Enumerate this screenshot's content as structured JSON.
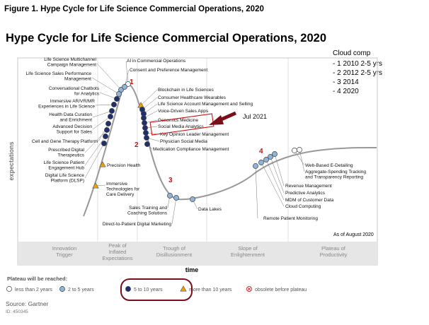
{
  "figure_caption": "Figure 1. Hype Cycle for Life Science Commercial Operations, 2020",
  "source": "Source: Gartner",
  "source_id": "ID: 450345",
  "notes": {
    "title": "Cloud comp",
    "lines": [
      "- 1 2010 2-5 yrs",
      "- 2 2012 2-5 yrs",
      "- 3 2014",
      "- 4 2020"
    ],
    "arrow_label": "Jul 2021",
    "markers": [
      "1",
      "2",
      "3",
      "4"
    ]
  },
  "colors": {
    "curve": "#999999",
    "dot_dark": "#1f2f6e",
    "dot_light": "#8fb4d8",
    "dot_white": "#ffffff",
    "triangle": "#f0a000",
    "annotation_red": "#cc1111",
    "arrow_maroon": "#7a0f1a",
    "phase_band": "#e6e6e6"
  },
  "chart_data": {
    "type": "line",
    "title": "Hype Cycle for Life Science Commercial Operations, 2020",
    "xlabel": "time",
    "ylabel": "expectations",
    "as_of": "As of August 2020",
    "phases": [
      "Innovation Trigger",
      "Peak of Inflated Expectations",
      "Trough of Disillusionment",
      "Slope of Enlightenment",
      "Plateau of Productivity"
    ],
    "legend_title": "Plateau will be reached:",
    "legend": [
      {
        "label": "less than 2 years",
        "symbol": "circle-white"
      },
      {
        "label": "2 to 5 years",
        "symbol": "circle-light"
      },
      {
        "label": "5 to 10 years",
        "symbol": "circle-dark"
      },
      {
        "label": "more than 10 years",
        "symbol": "triangle"
      },
      {
        "label": "obsolete before plateau",
        "symbol": "obsolete"
      }
    ],
    "technologies": [
      {
        "name": "Life Science Multichannel Campaign Management",
        "kind": "circle-light"
      },
      {
        "name": "AI in Commercial Operations",
        "kind": "circle-white"
      },
      {
        "name": "Consent and Preference Management",
        "kind": "circle-light"
      },
      {
        "name": "Life Science Sales Performance Management",
        "kind": "circle-light"
      },
      {
        "name": "Conversational Chatbots for Analytics",
        "kind": "circle-dark"
      },
      {
        "name": "Immersive AR/VR/MR Experiences in Life Science",
        "kind": "circle-dark"
      },
      {
        "name": "Health Data Curation and Enrichment",
        "kind": "circle-dark"
      },
      {
        "name": "Advanced Decision Support for Sales",
        "kind": "circle-dark"
      },
      {
        "name": "Cell and Gene Therapy Platform",
        "kind": "circle-dark"
      },
      {
        "name": "Prescribed Digital Therapeutics",
        "kind": "circle-dark"
      },
      {
        "name": "Life Science Patient Engagement Hub",
        "kind": "circle-dark"
      },
      {
        "name": "Digital Life Science Platform (DLSP)",
        "kind": "circle-dark"
      },
      {
        "name": "Precision Health",
        "kind": "triangle"
      },
      {
        "name": "Immersive Technologies for Care Delivery",
        "kind": "triangle"
      },
      {
        "name": "Blockchain in Life Sciences",
        "kind": "triangle"
      },
      {
        "name": "Consumer Healthcare Wearables",
        "kind": "circle-dark"
      },
      {
        "name": "Life Science Account Management and Selling",
        "kind": "circle-dark"
      },
      {
        "name": "Voice-Driven Sales Apps",
        "kind": "circle-dark"
      },
      {
        "name": "Genomics Medicine",
        "kind": "circle-dark"
      },
      {
        "name": "Social Media Analytics",
        "kind": "circle-dark"
      },
      {
        "name": "Key Opinion Leader Management",
        "kind": "circle-dark"
      },
      {
        "name": "Physician Social Media",
        "kind": "circle-dark"
      },
      {
        "name": "Medication Compliance Management",
        "kind": "circle-dark"
      },
      {
        "name": "Sales Training and Coaching Solutions",
        "kind": "circle-light"
      },
      {
        "name": "Direct-to-Patient Digital Marketing",
        "kind": "circle-light"
      },
      {
        "name": "Data Lakes",
        "kind": "circle-light"
      },
      {
        "name": "Remote Patient Monitoring",
        "kind": "circle-light"
      },
      {
        "name": "Cloud Computing",
        "kind": "circle-light"
      },
      {
        "name": "MDM of Customer Data",
        "kind": "circle-light"
      },
      {
        "name": "Predictive Analytics",
        "kind": "circle-light"
      },
      {
        "name": "Revenue Management",
        "kind": "circle-light"
      },
      {
        "name": "Web-Based E-Detailing",
        "kind": "circle-white"
      },
      {
        "name": "Aggregate-Spending Tracking and Transparency Reporting",
        "kind": "circle-white"
      }
    ]
  }
}
